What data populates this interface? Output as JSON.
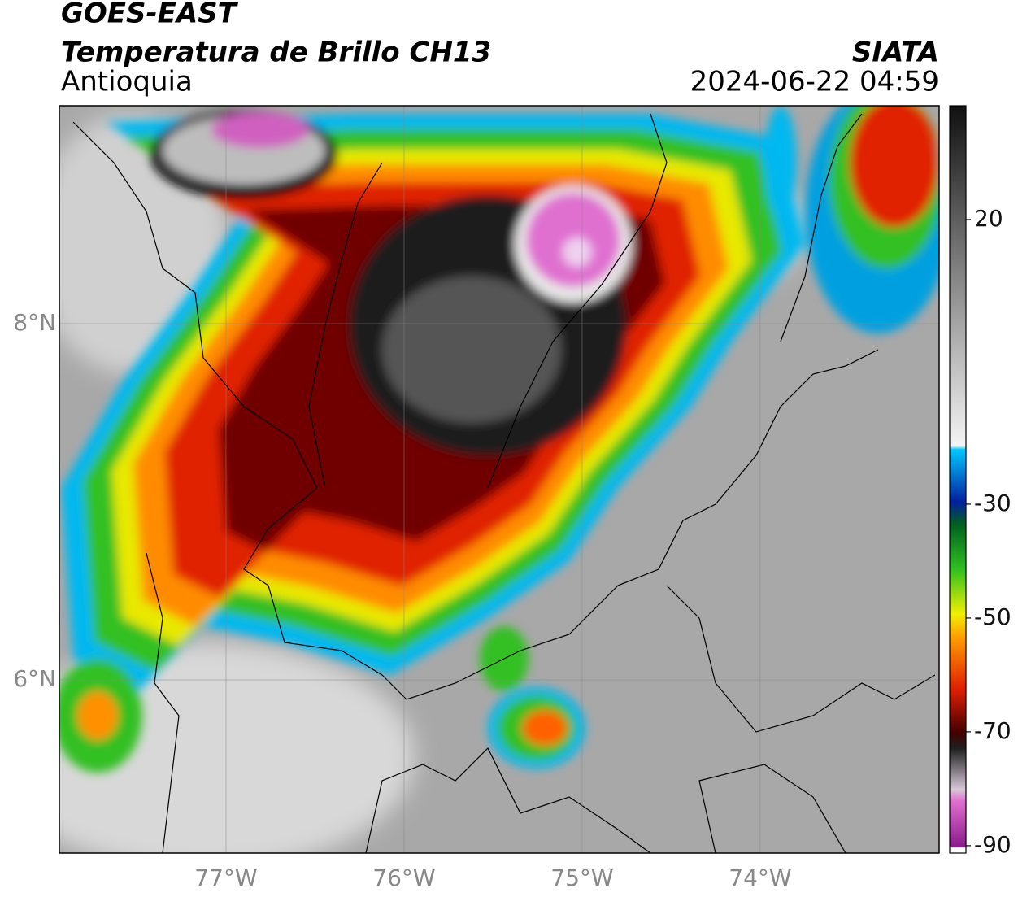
{
  "header": {
    "title": "GOES-EAST",
    "subtitle": "Temperatura de Brillo CH13",
    "region": "Antioquia",
    "source": "SIATA",
    "datetime": "2024-06-22 04:59"
  },
  "map": {
    "xlim": [
      -77.936,
      -72.995
    ],
    "ylim": [
      5.027,
      9.224
    ],
    "xticks": [
      {
        "value": -77,
        "label": "77°W"
      },
      {
        "value": -76,
        "label": "76°W"
      },
      {
        "value": -75,
        "label": "75°W"
      },
      {
        "value": -74,
        "label": "74°W"
      }
    ],
    "yticks": [
      {
        "value": 8,
        "label": "8°N"
      },
      {
        "value": 6,
        "label": "6°N"
      }
    ]
  },
  "colorbar": {
    "lim": [
      -91.3,
      40
    ],
    "ticks": [
      20,
      -30,
      -50,
      -70,
      -90
    ]
  }
}
